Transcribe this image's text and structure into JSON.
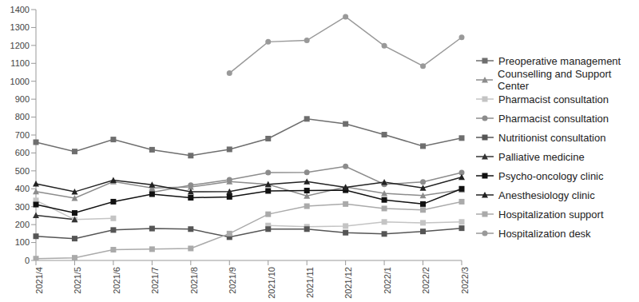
{
  "chart_data": {
    "type": "line",
    "categories": [
      "2021/4",
      "2021/5",
      "2021/6",
      "2021/7",
      "2021/8",
      "2021/9",
      "2021/10",
      "2021/11",
      "2021/12",
      "2022/1",
      "2022/2",
      "2022/3"
    ],
    "ylim": [
      0,
      1400
    ],
    "yticks": [
      0,
      100,
      200,
      300,
      400,
      500,
      600,
      700,
      800,
      900,
      1000,
      1100,
      1200,
      1300,
      1400
    ],
    "grid": false,
    "legend": "right",
    "series": [
      {
        "name": "Preoperative management",
        "color": "#6e6e6e",
        "marker": "square",
        "values": [
          660,
          608,
          675,
          618,
          585,
          620,
          680,
          790,
          762,
          702,
          638,
          683
        ]
      },
      {
        "name": "Counselling and Support Center",
        "color": "#8c8c8c",
        "marker": "triangle",
        "values": [
          385,
          348,
          440,
          405,
          410,
          440,
          425,
          360,
          410,
          375,
          362,
          395
        ]
      },
      {
        "name": "Pharmacist consultation",
        "color": "#c4c4c4",
        "marker": "square",
        "values": [
          335,
          228,
          235,
          null,
          null,
          null,
          195,
          188,
          192,
          215,
          210,
          215
        ]
      },
      {
        "name": "Pharmacist consultation",
        "color": "#8c8c8c",
        "marker": "circle",
        "values": [
          null,
          null,
          null,
          380,
          420,
          450,
          490,
          492,
          525,
          425,
          438,
          490
        ]
      },
      {
        "name": "Nutritionist consultation",
        "color": "#555555",
        "marker": "square",
        "values": [
          135,
          122,
          170,
          178,
          175,
          130,
          175,
          175,
          155,
          148,
          162,
          180
        ]
      },
      {
        "name": "Palliative medicine",
        "color": "#333333",
        "marker": "triangle",
        "values": [
          252,
          228,
          null,
          null,
          null,
          null,
          null,
          null,
          null,
          null,
          null,
          null
        ]
      },
      {
        "name": "Psycho-oncology clinic",
        "color": "#111111",
        "marker": "square",
        "values": [
          312,
          265,
          328,
          370,
          350,
          355,
          388,
          390,
          392,
          338,
          315,
          400
        ]
      },
      {
        "name": "Anesthesiology clinic",
        "color": "#222222",
        "marker": "triangle",
        "values": [
          428,
          383,
          448,
          422,
          383,
          385,
          425,
          440,
          408,
          437,
          405,
          465
        ]
      },
      {
        "name": "Hospitalization support",
        "color": "#aaaaaa",
        "marker": "square",
        "values": [
          10,
          15,
          60,
          63,
          67,
          150,
          258,
          303,
          315,
          290,
          282,
          328
        ]
      },
      {
        "name": "Hospitalization desk",
        "color": "#999999",
        "marker": "circle",
        "values": [
          null,
          null,
          null,
          null,
          null,
          1045,
          1220,
          1228,
          1360,
          1198,
          1085,
          1245
        ]
      }
    ]
  }
}
